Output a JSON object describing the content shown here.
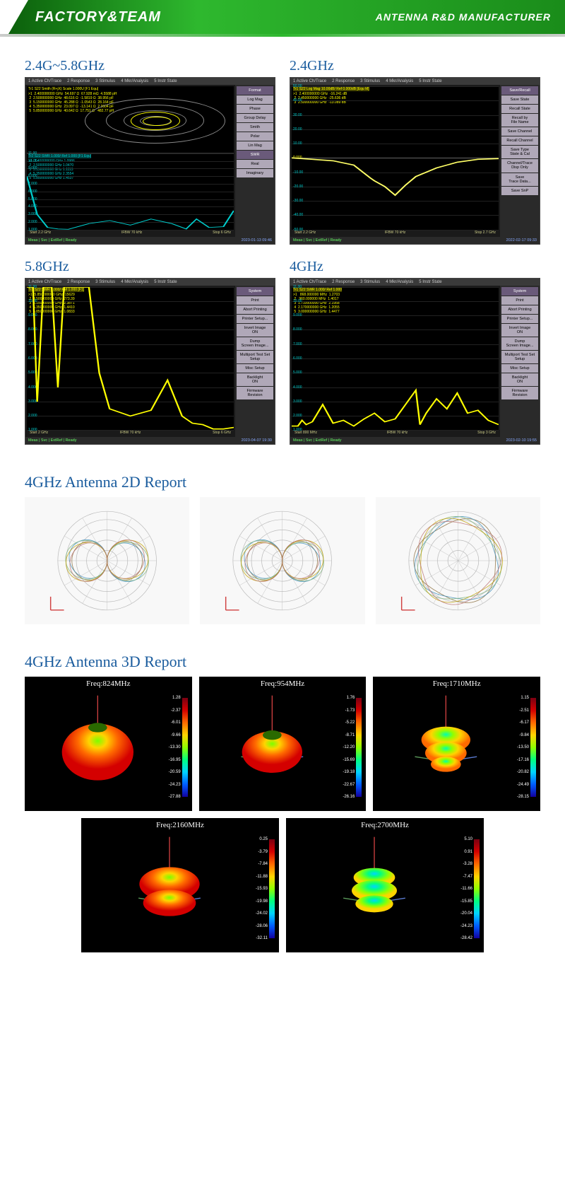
{
  "header": {
    "left": "FACTORY&TEAM",
    "right": "ANTENNA R&D MANUFACTURER"
  },
  "title_color": "#1a5c9e",
  "vna": {
    "menu_items": [
      "1 Active Ch/Trace",
      "2 Response",
      "3 Stimulus",
      "4 Mkr/Analysis",
      "5 Instr State"
    ],
    "common": {
      "ifbw": "IFBW 70 kHz",
      "status": "Meas | Svc | ExtRef | Ready"
    },
    "panels": [
      {
        "title": "2.4G~5.8GHz",
        "trace_label": "Tr1 S22 Smith (R+jX) Scale 1.000U [F1 Equ]",
        "markers_top": [
          ">1  2.400000000 GHz  54.697 Ω  67.928 mΩ  4.5588 pH",
          " 2  2.500000000 GHz  48.616 Ω  -1.5819 Ω  38.956 pF",
          " 3  5.150000000 GHz  45.288 Ω  -1.0543 Ω  28.164 pF",
          " 4  5.350000000 GHz  23.097 Ω  -13.141 Ω  2.3604 pF",
          " 5  5.850000000 GHz  40.642 Ω  17.751 Ω   482.77 pH"
        ],
        "lower_label": "Tr2 S22 SWR 1.000/ Ref 1.000 [F1 Equ]",
        "markers_bot": [
          ">1  2.400000000 GHz 1.0986",
          " 2  2.500000000 GHz 1.0470",
          " 3  5.150000000 GHz 1.1113",
          " 4  5.350000000 GHz 2.3554",
          " 5  5.850000000 GHz 1.4537"
        ],
        "yvals": [
          "11.00",
          "10.00",
          "9.000",
          "8.000",
          "7.000",
          "6.000",
          "5.000",
          "4.000",
          "3.000",
          "2.000",
          "1.000"
        ],
        "ylim": [
          1,
          11
        ],
        "start": "Start 2.2 GHz",
        "stop": "Stop 6 GHz",
        "trace_color": "#00cccc",
        "top_marker_color": "#ffff00",
        "swr_points": [
          [
            0,
            8
          ],
          [
            0.05,
            3
          ],
          [
            0.1,
            1.3
          ],
          [
            0.15,
            1.1
          ],
          [
            0.2,
            1.05
          ],
          [
            0.3,
            1.8
          ],
          [
            0.4,
            2.2
          ],
          [
            0.5,
            1.6
          ],
          [
            0.6,
            2.4
          ],
          [
            0.7,
            1.8
          ],
          [
            0.77,
            1.1
          ],
          [
            0.82,
            2.4
          ],
          [
            0.88,
            1.3
          ],
          [
            0.95,
            1.4
          ],
          [
            1,
            3.5
          ]
        ],
        "sidebar_title": "Format",
        "sidebar_hl": "SWR",
        "buttons": [
          "Log Mag",
          "Phase",
          "Group Delay",
          "Smith",
          "Polar",
          "Lin Mag",
          "SWR",
          "Real",
          "Imaginary"
        ],
        "timestamp": "2023-01-13 09:46",
        "has_smith": true
      },
      {
        "title": "2.4GHz",
        "trace_label": "Tr1 S22 Log Mag 10.00dB/ Ref 0.000dB [Equ M]",
        "markers_top": [
          ">1  2.400000000 GHz  -16.241 dB",
          " 2  2.450000000 GHz  -25.636 dB",
          " 3  2.500000000 GHz  -13.089 dB"
        ],
        "yvals": [
          "50.00",
          "40.00",
          "30.00",
          "20.00",
          "10.00",
          "0.000",
          "-10.00",
          "-20.00",
          "-30.00",
          "-40.00",
          "-50.00"
        ],
        "ylim": [
          -50,
          50
        ],
        "start": "Start 2.2 GHz",
        "stop": "Stop 2.7 GHz",
        "trace_color": "#ffff66",
        "top_marker_color": "#ffff00",
        "logmag_points": [
          [
            0,
            0
          ],
          [
            0.1,
            -1
          ],
          [
            0.2,
            -2
          ],
          [
            0.3,
            -5
          ],
          [
            0.38,
            -14
          ],
          [
            0.4,
            -16
          ],
          [
            0.45,
            -20
          ],
          [
            0.5,
            -26
          ],
          [
            0.55,
            -19
          ],
          [
            0.6,
            -13
          ],
          [
            0.7,
            -7
          ],
          [
            0.8,
            -3
          ],
          [
            0.9,
            -1
          ],
          [
            1,
            -0.5
          ]
        ],
        "sidebar_title": "Save/Recall",
        "buttons": [
          "Save State",
          "Recall State",
          "Recall by\nFile Name",
          "Save Channel",
          "Recall Channel",
          "Save Type\nState & Cal",
          "Channel/Trace\nDisp Only",
          "Save\nTrace Data...",
          "Save SnP"
        ],
        "timestamp": "2022-02-17 09:33",
        "has_smith": false,
        "ref_line_idx": 5
      },
      {
        "title": "5.8GHz",
        "trace_label": "Tr1 S22 SWR 1.000/ Ref 1.000 [F1]",
        "markers_top": [
          ">1  5.850000000 GHz  15629",
          " 2  3.500000000 GHz  273.39",
          " 3  5.150000000 GHz  2.3871",
          " 4  5.350000000 GHz  1.4410",
          " 5  5.850000000 GHz  1.0833"
        ],
        "yvals": [
          "11.00",
          "10.00",
          "9.000",
          "8.000",
          "7.000",
          "6.000",
          "5.000",
          "4.000",
          "3.000",
          "2.000",
          "1.000"
        ],
        "ylim": [
          1,
          11
        ],
        "start": "Start 2 GHz",
        "stop": "Stop 6 GHz",
        "trace_color": "#ffff00",
        "top_marker_color": "#ffff00",
        "swr_points": [
          [
            0,
            11
          ],
          [
            0.03,
            11
          ],
          [
            0.05,
            3
          ],
          [
            0.08,
            11
          ],
          [
            0.12,
            11
          ],
          [
            0.15,
            4
          ],
          [
            0.18,
            11
          ],
          [
            0.22,
            11
          ],
          [
            0.3,
            11
          ],
          [
            0.35,
            5
          ],
          [
            0.4,
            2.5
          ],
          [
            0.5,
            2
          ],
          [
            0.6,
            2.4
          ],
          [
            0.68,
            4.5
          ],
          [
            0.75,
            2
          ],
          [
            0.8,
            1.5
          ],
          [
            0.85,
            1.4
          ],
          [
            0.9,
            1.1
          ],
          [
            0.95,
            1.1
          ],
          [
            1,
            1.2
          ]
        ],
        "sidebar_title": "System",
        "buttons": [
          "Print",
          "Abort Printing",
          "Printer Setup...",
          "Invert Image\nON",
          "Dump\nScreen Image...",
          "Multiport Test Set\nSetup",
          "Misc Setup",
          "Backlight\nON",
          "Firmware\nRevision"
        ],
        "timestamp": "2023-04-07 19:30",
        "has_smith": false
      },
      {
        "title": "4GHz",
        "trace_label": "Tr1 S22 SWR 1.000/ Ref 1.000",
        "markers_top": [
          ">1   868.000000 MHz  1.2703",
          " 2   960.000000 MHz  1.4017",
          " 3  1.710000000 GHz  2.1958",
          " 4  2.170000000 GHz  1.2055",
          " 5  3.000000000 GHz  1.4477"
        ],
        "yvals": [
          "11.00",
          "10.00",
          "9.000",
          "8.000",
          "7.000",
          "6.000",
          "5.000",
          "4.000",
          "3.000",
          "2.000",
          "1.000"
        ],
        "ylim": [
          1,
          11
        ],
        "start": "Start 800 MHz",
        "stop": "Stop 3 GHz",
        "trace_color": "#ffff00",
        "top_marker_color": "#ffff00",
        "swr_points": [
          [
            0,
            1.3
          ],
          [
            0.03,
            1.3
          ],
          [
            0.05,
            1.7
          ],
          [
            0.07,
            1.4
          ],
          [
            0.1,
            1.6
          ],
          [
            0.15,
            2.8
          ],
          [
            0.2,
            1.5
          ],
          [
            0.25,
            1.7
          ],
          [
            0.3,
            1.3
          ],
          [
            0.35,
            1.8
          ],
          [
            0.4,
            2.2
          ],
          [
            0.45,
            1.6
          ],
          [
            0.5,
            1.8
          ],
          [
            0.55,
            2.8
          ],
          [
            0.6,
            3.8
          ],
          [
            0.62,
            1.4
          ],
          [
            0.65,
            2.2
          ],
          [
            0.7,
            3.2
          ],
          [
            0.75,
            2.5
          ],
          [
            0.8,
            3.6
          ],
          [
            0.85,
            2.2
          ],
          [
            0.9,
            2.4
          ],
          [
            0.95,
            1.7
          ],
          [
            1,
            1.4
          ]
        ],
        "sidebar_title": "System",
        "buttons": [
          "Print",
          "Abort Printing",
          "Printer Setup...",
          "Invert Image\nON",
          "Dump\nScreen Image...",
          "Multiport Test Set\nSetup",
          "Misc Setup",
          "Backlight\nON",
          "Firmware\nRevision"
        ],
        "timestamp": "2023-02-10 19:55",
        "has_smith": false
      }
    ]
  },
  "report2d": {
    "title": "4GHz Antenna 2D Report",
    "polar": {
      "bg": "#f8f8f8",
      "axis_color": "#bbb",
      "trace_colors": [
        "#8a6d3b",
        "#3c8dbc",
        "#7bb27b",
        "#c0a000",
        "#b87070"
      ],
      "cards": [
        {
          "type": "figure8",
          "lobe_r": 0.85
        },
        {
          "type": "figure8",
          "lobe_r": 0.85
        },
        {
          "type": "omni",
          "r": 0.9
        }
      ]
    }
  },
  "report3d": {
    "title": "4GHz Antenna 3D Report",
    "colorbar_stops": [
      "#7a0012",
      "#d40000",
      "#ff6a00",
      "#ffd400",
      "#90ff00",
      "#00ff80",
      "#00d4ff",
      "#005cff",
      "#1200a0"
    ],
    "items": [
      {
        "freq": "Freq:824MHz",
        "cmax": 1.28,
        "cmin": -27.88,
        "shape": "apple",
        "hue": "hot",
        "w": 3
      },
      {
        "freq": "Freq:954MHz",
        "cmax": 1.76,
        "cmin": -26.16,
        "shape": "donut",
        "hue": "hot",
        "w": 3
      },
      {
        "freq": "Freq:1710MHz",
        "cmax": 1.15,
        "cmin": -28.15,
        "shape": "stack",
        "hue": "warm",
        "w": 3
      },
      {
        "freq": "Freq:2160MHz",
        "cmax": 0.25,
        "cmin": -32.11,
        "shape": "double",
        "hue": "hot",
        "w": 2
      },
      {
        "freq": "Freq:2700MHz",
        "cmax": 5.1,
        "cmin": -28.42,
        "shape": "cylinder",
        "hue": "cool",
        "w": 2
      }
    ]
  }
}
